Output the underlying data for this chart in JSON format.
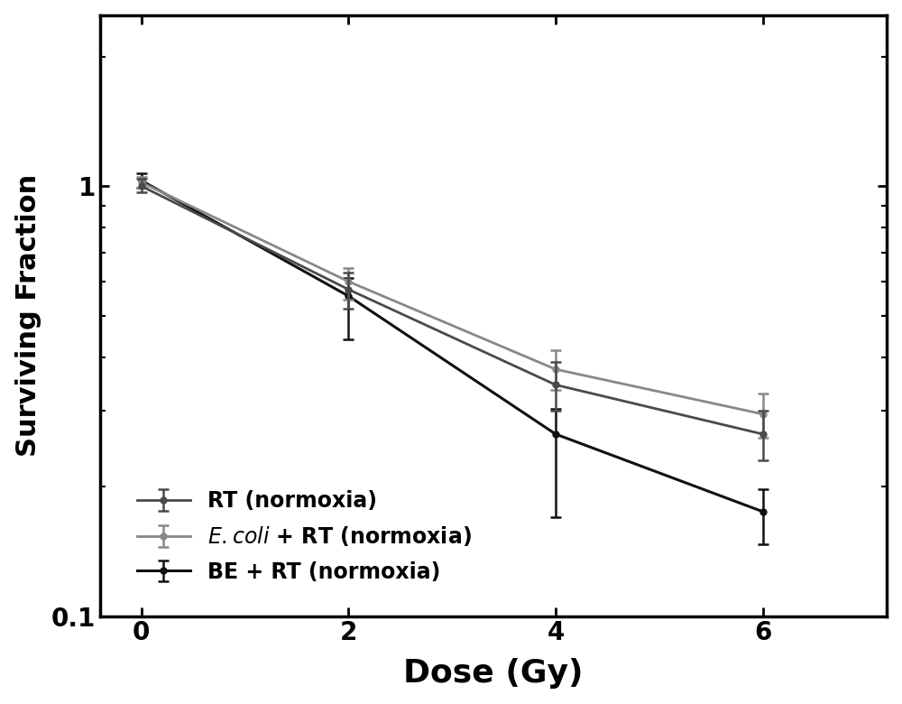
{
  "x": [
    0,
    2,
    4,
    6
  ],
  "series": [
    {
      "label": "RT (normoxia)",
      "color": "#4a4a4a",
      "linewidth": 2.0,
      "linestyle": "-",
      "y": [
        1.0,
        0.575,
        0.345,
        0.265
      ],
      "yerr_low": [
        0.03,
        0.055,
        0.045,
        0.035
      ],
      "yerr_high": [
        0.04,
        0.055,
        0.045,
        0.035
      ],
      "marker": "o",
      "markersize": 5
    },
    {
      "label": "E. coli + RT (normoxia)",
      "color": "#888888",
      "linewidth": 2.0,
      "linestyle": "-",
      "y": [
        1.02,
        0.6,
        0.375,
        0.295
      ],
      "yerr_low": [
        0.03,
        0.055,
        0.04,
        0.035
      ],
      "yerr_high": [
        0.03,
        0.045,
        0.04,
        0.035
      ],
      "marker": "o",
      "markersize": 5
    },
    {
      "label": "BE + RT (normoxia)",
      "color": "#111111",
      "linewidth": 2.2,
      "linestyle": "-",
      "y": [
        1.03,
        0.555,
        0.265,
        0.175
      ],
      "yerr_low": [
        0.04,
        0.115,
        0.095,
        0.028
      ],
      "yerr_high": [
        0.04,
        0.055,
        0.038,
        0.022
      ],
      "marker": "o",
      "markersize": 5
    }
  ],
  "xlabel": "Dose (Gy)",
  "ylabel": "Surviving Fraction",
  "xlim": [
    -0.4,
    7.2
  ],
  "ylim_log": [
    0.1,
    2.5
  ],
  "xticks": [
    0,
    2,
    4,
    6
  ],
  "xlabel_fontsize": 26,
  "ylabel_fontsize": 22,
  "tick_fontsize": 20,
  "legend_fontsize": 17,
  "background_color": "#ffffff",
  "legend_loc": "lower left",
  "legend_labels": [
    "RT (normoxia)",
    "$\\it{E. coli}$ + RT (normoxia)",
    "BE + RT (normoxia)"
  ],
  "capsize": 4,
  "elinewidth": 1.8,
  "capthick": 1.8
}
